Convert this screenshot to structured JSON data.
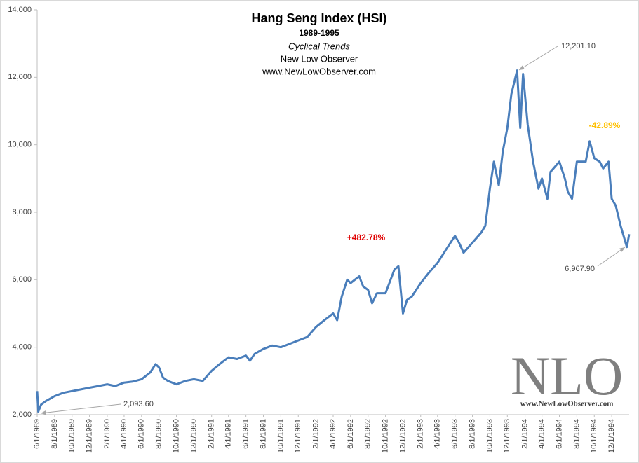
{
  "chart_data": {
    "type": "line",
    "title": "Hang Seng Index (HSI)",
    "subtitle": "1989-1995",
    "subtitle_lines": [
      "Cyclical Trends",
      "New Low Observer",
      "www.NewLowObserver.com"
    ],
    "annotations": [
      "+482.78%",
      "-42.89%",
      "2,093.60",
      "12,201.10",
      "6,967.90"
    ],
    "annotation_colors": [
      "#e00000",
      "#ffc000",
      "#404040",
      "#404040",
      "#404040"
    ],
    "watermark": [
      "NLO",
      "www.NewLowObserver.com"
    ],
    "x": [
      "1989-06-01",
      "1989-06-05",
      "1989-06-15",
      "1989-07-01",
      "1989-08-01",
      "1989-09-01",
      "1989-10-01",
      "1989-11-01",
      "1989-12-01",
      "1990-01-01",
      "1990-02-01",
      "1990-03-01",
      "1990-04-01",
      "1990-05-01",
      "1990-06-01",
      "1990-07-01",
      "1990-07-20",
      "1990-08-01",
      "1990-08-15",
      "1990-09-01",
      "1990-10-01",
      "1990-11-01",
      "1990-12-01",
      "1991-01-01",
      "1991-02-01",
      "1991-03-01",
      "1991-04-01",
      "1991-05-01",
      "1991-06-01",
      "1991-06-15",
      "1991-07-01",
      "1991-08-01",
      "1991-09-01",
      "1991-10-01",
      "1991-11-01",
      "1991-12-01",
      "1992-01-01",
      "1992-02-01",
      "1992-03-01",
      "1992-04-01",
      "1992-04-15",
      "1992-05-01",
      "1992-05-20",
      "1992-06-01",
      "1992-07-01",
      "1992-07-15",
      "1992-08-01",
      "1992-08-15",
      "1992-09-01",
      "1992-10-01",
      "1992-11-01",
      "1992-11-15",
      "1992-12-01",
      "1992-12-15",
      "1993-01-01",
      "1993-02-01",
      "1993-03-01",
      "1993-04-01",
      "1993-05-01",
      "1993-06-01",
      "1993-06-15",
      "1993-07-01",
      "1993-08-01",
      "1993-09-01",
      "1993-09-15",
      "1993-10-01",
      "1993-10-15",
      "1993-11-01",
      "1993-11-15",
      "1993-12-01",
      "1993-12-15",
      "1994-01-04",
      "1994-01-15",
      "1994-01-25",
      "1994-02-10",
      "1994-03-01",
      "1994-03-20",
      "1994-04-01",
      "1994-04-20",
      "1994-05-01",
      "1994-06-01",
      "1994-06-20",
      "1994-07-01",
      "1994-07-15",
      "1994-08-01",
      "1994-09-01",
      "1994-09-15",
      "1994-10-01",
      "1994-10-20",
      "1994-11-01",
      "1994-11-20",
      "1994-12-01",
      "1994-12-15",
      "1995-01-01",
      "1995-01-23",
      "1995-01-31"
    ],
    "series": [
      {
        "name": "HSI",
        "color": "#4a7ebb",
        "values": [
          2700,
          2093.6,
          2300,
          2400,
          2550,
          2650,
          2700,
          2750,
          2800,
          2850,
          2900,
          2850,
          2950,
          2980,
          3050,
          3250,
          3500,
          3400,
          3100,
          3000,
          2900,
          3000,
          3050,
          3000,
          3300,
          3500,
          3700,
          3650,
          3750,
          3600,
          3800,
          3950,
          4050,
          4000,
          4100,
          4200,
          4300,
          4600,
          4800,
          5000,
          4800,
          5500,
          6000,
          5900,
          6100,
          5800,
          5700,
          5300,
          5600,
          5600,
          6300,
          6400,
          5000,
          5400,
          5500,
          5900,
          6200,
          6500,
          6900,
          7300,
          7100,
          6800,
          7100,
          7400,
          7600,
          8700,
          9500,
          8800,
          9800,
          10500,
          11500,
          12201.1,
          10500,
          12100,
          10600,
          9500,
          8700,
          9000,
          8400,
          9200,
          9500,
          9000,
          8600,
          8400,
          9500,
          9500,
          10100,
          9600,
          9500,
          9300,
          9500,
          8400,
          8200,
          7600,
          6967.9,
          7350
        ]
      }
    ],
    "xlim": [
      "1989-06-01",
      "1995-01-31"
    ],
    "xticks": [
      {
        "value": "1989-06-01",
        "label": "6/1/1989"
      },
      {
        "value": "1989-08-01",
        "label": "8/1/1989"
      },
      {
        "value": "1989-10-01",
        "label": "10/1/1989"
      },
      {
        "value": "1989-12-01",
        "label": "12/1/1989"
      },
      {
        "value": "1990-02-01",
        "label": "2/1/1990"
      },
      {
        "value": "1990-04-01",
        "label": "4/1/1990"
      },
      {
        "value": "1990-06-01",
        "label": "6/1/1990"
      },
      {
        "value": "1990-08-01",
        "label": "8/1/1990"
      },
      {
        "value": "1990-10-01",
        "label": "10/1/1990"
      },
      {
        "value": "1990-12-01",
        "label": "12/1/1990"
      },
      {
        "value": "1991-02-01",
        "label": "2/1/1991"
      },
      {
        "value": "1991-04-01",
        "label": "4/1/1991"
      },
      {
        "value": "1991-06-01",
        "label": "6/1/1991"
      },
      {
        "value": "1991-08-01",
        "label": "8/1/1991"
      },
      {
        "value": "1991-10-01",
        "label": "10/1/1991"
      },
      {
        "value": "1991-12-01",
        "label": "12/1/1991"
      },
      {
        "value": "1992-02-01",
        "label": "2/1/1992"
      },
      {
        "value": "1992-04-01",
        "label": "4/1/1992"
      },
      {
        "value": "1992-06-01",
        "label": "6/1/1992"
      },
      {
        "value": "1992-08-01",
        "label": "8/1/1992"
      },
      {
        "value": "1992-10-01",
        "label": "10/1/1992"
      },
      {
        "value": "1992-12-01",
        "label": "12/1/1992"
      },
      {
        "value": "1993-02-01",
        "label": "2/1/1993"
      },
      {
        "value": "1993-04-01",
        "label": "4/1/1993"
      },
      {
        "value": "1993-06-01",
        "label": "6/1/1993"
      },
      {
        "value": "1993-08-01",
        "label": "8/1/1993"
      },
      {
        "value": "1993-10-01",
        "label": "10/1/1993"
      },
      {
        "value": "1993-12-01",
        "label": "12/1/1993"
      },
      {
        "value": "1994-02-01",
        "label": "2/1/1994"
      },
      {
        "value": "1994-04-01",
        "label": "4/1/1994"
      },
      {
        "value": "1994-06-01",
        "label": "6/1/1994"
      },
      {
        "value": "1994-08-01",
        "label": "8/1/1994"
      },
      {
        "value": "1994-10-01",
        "label": "10/1/1994"
      },
      {
        "value": "1994-12-01",
        "label": "12/1/1994"
      }
    ],
    "ylim": [
      2000,
      14000
    ],
    "yticks": [
      {
        "value": 2000,
        "label": "2,000"
      },
      {
        "value": 4000,
        "label": "4,000"
      },
      {
        "value": 6000,
        "label": "6,000"
      },
      {
        "value": 8000,
        "label": "8,000"
      },
      {
        "value": 10000,
        "label": "10,000"
      },
      {
        "value": 12000,
        "label": "12,000"
      },
      {
        "value": 14000,
        "label": "14,000"
      }
    ],
    "grid": false
  }
}
